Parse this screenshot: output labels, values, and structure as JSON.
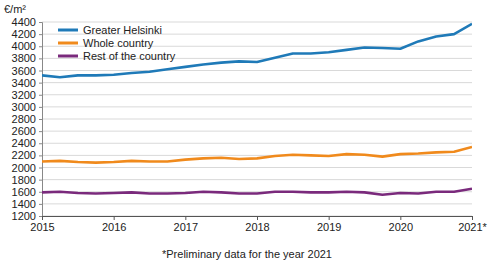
{
  "chart_data": {
    "type": "line",
    "y_label": "€/m²",
    "annotation": "*Preliminary data for the year 2021",
    "categories": [
      "2015",
      null,
      null,
      null,
      "2016",
      null,
      null,
      null,
      "2017",
      null,
      null,
      null,
      "2018",
      null,
      null,
      null,
      "2019",
      null,
      null,
      null,
      "2020",
      null,
      null,
      null,
      "2021*"
    ],
    "series": [
      {
        "name": "Greater Helsinki",
        "color": "#1f7ab8",
        "values": [
          3520,
          3490,
          3520,
          3520,
          3530,
          3560,
          3580,
          3620,
          3660,
          3700,
          3730,
          3750,
          3740,
          3810,
          3880,
          3880,
          3900,
          3940,
          3980,
          3970,
          3960,
          4080,
          4160,
          4200,
          4370
        ]
      },
      {
        "name": "Whole country",
        "color": "#f08a1c",
        "values": [
          2100,
          2110,
          2090,
          2080,
          2090,
          2110,
          2100,
          2100,
          2130,
          2150,
          2160,
          2140,
          2150,
          2190,
          2210,
          2200,
          2190,
          2220,
          2210,
          2180,
          2220,
          2230,
          2250,
          2260,
          2340
        ]
      },
      {
        "name": "Rest of the country",
        "color": "#7a2a7c",
        "values": [
          1590,
          1600,
          1580,
          1570,
          1580,
          1590,
          1570,
          1570,
          1580,
          1600,
          1590,
          1570,
          1570,
          1600,
          1600,
          1590,
          1590,
          1600,
          1590,
          1550,
          1580,
          1570,
          1600,
          1600,
          1650
        ]
      }
    ],
    "ylim": [
      1200,
      4400
    ],
    "yticks": [
      1200,
      1400,
      1600,
      1800,
      2000,
      2200,
      2400,
      2600,
      2800,
      3000,
      3200,
      3400,
      3600,
      3800,
      4000,
      4200,
      4400
    ],
    "grid": true,
    "legend": "upper left"
  }
}
